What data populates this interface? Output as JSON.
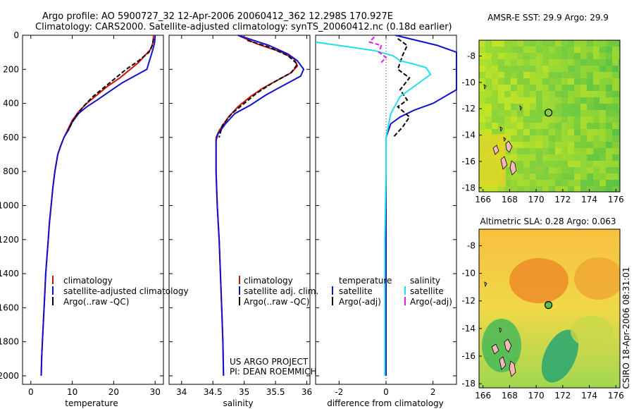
{
  "header": {
    "line1": "Argo profile: AO 5900727_32 12-Apr-2006 20060412_362 12.298S 170.927E",
    "line2": "Climatology: CARS2000. Satellite-adjusted climatology: synTS_20060412.nc (0.18d earlier)"
  },
  "side_label": "CSIRO 18-Apr-2006 08:31:01",
  "project": {
    "line1": "US ARGO PROJECT",
    "line2": "PI: DEAN ROEMMICH"
  },
  "colors": {
    "climatology": "#d01010",
    "satellite": "#1010d0",
    "argo": "#000000",
    "cyan": "#20e0e8",
    "magenta": "#e020e0"
  },
  "chart_data": [
    {
      "type": "line",
      "xlabel": "temperature",
      "ylabel": "",
      "xlim": [
        -2,
        32
      ],
      "ylim": [
        2050,
        0
      ],
      "xticks": [
        0,
        10,
        20,
        30
      ],
      "yticks": [
        0,
        200,
        400,
        600,
        800,
        1000,
        1200,
        1400,
        1600,
        1800,
        2000
      ],
      "legend": [
        "climatology",
        "satellite-adjusted climatology",
        "Argo(..raw -QC)"
      ],
      "series": [
        {
          "name": "climatology",
          "color": "#d01010",
          "dash": "",
          "points": [
            [
              29.6,
              0
            ],
            [
              29.5,
              40
            ],
            [
              29.0,
              80
            ],
            [
              27.5,
              120
            ],
            [
              26.0,
              160
            ],
            [
              24.0,
              200
            ],
            [
              21.5,
              250
            ],
            [
              18.5,
              300
            ],
            [
              16.0,
              350
            ],
            [
              13.5,
              400
            ],
            [
              11.5,
              450
            ],
            [
              10.0,
              500
            ],
            [
              9.0,
              550
            ],
            [
              8.0,
              600
            ],
            [
              7.2,
              650
            ],
            [
              6.5,
              700
            ],
            [
              5.8,
              800
            ],
            [
              5.3,
              900
            ],
            [
              4.9,
              1000
            ],
            [
              4.5,
              1100
            ],
            [
              4.2,
              1200
            ],
            [
              3.9,
              1300
            ],
            [
              3.6,
              1400
            ],
            [
              3.4,
              1500
            ],
            [
              3.2,
              1600
            ],
            [
              3.0,
              1700
            ],
            [
              2.8,
              1800
            ],
            [
              2.6,
              1900
            ],
            [
              2.5,
              2000
            ]
          ]
        },
        {
          "name": "satellite-adjusted climatology",
          "color": "#1010d0",
          "dash": "",
          "points": [
            [
              30.0,
              0
            ],
            [
              29.9,
              40
            ],
            [
              29.5,
              80
            ],
            [
              29.0,
              120
            ],
            [
              28.5,
              160
            ],
            [
              28.0,
              200
            ],
            [
              26.5,
              220
            ],
            [
              22.0,
              280
            ],
            [
              19.0,
              330
            ],
            [
              16.0,
              380
            ],
            [
              13.5,
              420
            ],
            [
              11.5,
              460
            ],
            [
              10.0,
              510
            ],
            [
              9.0,
              560
            ],
            [
              8.0,
              600
            ],
            [
              7.2,
              650
            ],
            [
              6.5,
              700
            ],
            [
              5.8,
              800
            ],
            [
              5.3,
              900
            ],
            [
              4.9,
              1000
            ],
            [
              4.5,
              1100
            ],
            [
              4.2,
              1200
            ],
            [
              3.9,
              1300
            ],
            [
              3.6,
              1400
            ],
            [
              3.4,
              1500
            ],
            [
              3.2,
              1600
            ],
            [
              3.0,
              1700
            ],
            [
              2.8,
              1800
            ],
            [
              2.6,
              1900
            ],
            [
              2.5,
              2000
            ]
          ]
        },
        {
          "name": "Argo(..raw -QC)",
          "color": "#000000",
          "dash": "6,3",
          "points": [
            [
              29.6,
              20
            ],
            [
              29.3,
              60
            ],
            [
              28.5,
              100
            ],
            [
              26.0,
              150
            ],
            [
              23.0,
              200
            ],
            [
              20.0,
              260
            ],
            [
              17.5,
              310
            ],
            [
              15.0,
              360
            ],
            [
              13.0,
              410
            ],
            [
              11.3,
              460
            ],
            [
              10.0,
              510
            ],
            [
              9.0,
              560
            ]
          ]
        }
      ]
    },
    {
      "type": "line",
      "xlabel": "salinity",
      "ylabel": "",
      "xlim": [
        33.8,
        36.05
      ],
      "ylim": [
        2050,
        0
      ],
      "xticks": [
        34,
        34.5,
        35,
        35.5,
        36
      ],
      "legend": [
        "climatology",
        "satellite adj. clim.",
        "Argo(..raw -QC)"
      ],
      "series": [
        {
          "name": "climatology",
          "color": "#d01010",
          "dash": "",
          "points": [
            [
              34.9,
              0
            ],
            [
              35.2,
              50
            ],
            [
              35.6,
              100
            ],
            [
              35.8,
              140
            ],
            [
              35.85,
              180
            ],
            [
              35.75,
              220
            ],
            [
              35.5,
              270
            ],
            [
              35.3,
              310
            ],
            [
              35.1,
              360
            ],
            [
              34.9,
              420
            ],
            [
              34.75,
              480
            ],
            [
              34.6,
              560
            ],
            [
              34.55,
              600
            ],
            [
              34.55,
              700
            ],
            [
              34.55,
              800
            ],
            [
              34.57,
              1000
            ],
            [
              34.6,
              1200
            ],
            [
              34.62,
              1400
            ],
            [
              34.64,
              1600
            ],
            [
              34.66,
              1800
            ],
            [
              34.67,
              2000
            ]
          ]
        },
        {
          "name": "satellite adj. clim.",
          "color": "#1010d0",
          "dash": "",
          "points": [
            [
              34.9,
              0
            ],
            [
              35.4,
              60
            ],
            [
              35.7,
              110
            ],
            [
              35.85,
              150
            ],
            [
              35.95,
              200
            ],
            [
              35.9,
              240
            ],
            [
              35.6,
              300
            ],
            [
              35.35,
              350
            ],
            [
              35.1,
              410
            ],
            [
              34.85,
              460
            ],
            [
              34.7,
              520
            ],
            [
              34.58,
              580
            ],
            [
              34.55,
              620
            ],
            [
              34.55,
              700
            ],
            [
              34.55,
              800
            ],
            [
              34.57,
              1000
            ],
            [
              34.6,
              1200
            ],
            [
              34.62,
              1400
            ],
            [
              34.64,
              1600
            ],
            [
              34.66,
              1800
            ],
            [
              34.67,
              2000
            ]
          ]
        },
        {
          "name": "Argo(..raw -QC)",
          "color": "#000000",
          "dash": "6,3",
          "points": [
            [
              35.05,
              30
            ],
            [
              35.4,
              70
            ],
            [
              35.7,
              120
            ],
            [
              35.85,
              170
            ],
            [
              35.75,
              220
            ],
            [
              35.45,
              280
            ],
            [
              35.2,
              340
            ],
            [
              35.0,
              400
            ],
            [
              34.8,
              460
            ],
            [
              34.65,
              530
            ],
            [
              34.6,
              600
            ]
          ]
        }
      ]
    },
    {
      "type": "line",
      "xlabel": "difference from climatology",
      "ylabel": "",
      "xlim": [
        -3,
        3
      ],
      "ylim": [
        2050,
        0
      ],
      "xticks": [
        -2,
        0,
        2
      ],
      "legend_groups": [
        {
          "title": "temperature",
          "items": [
            "satellite",
            "Argo(-adj)"
          ]
        },
        {
          "title": "salinity",
          "items": [
            "satellite",
            "Argo(-adj)"
          ]
        }
      ],
      "series": [
        {
          "name": "satellite",
          "group": "temperature",
          "color": "#1010d0",
          "dash": "",
          "points": [
            [
              0.4,
              0
            ],
            [
              2.2,
              60
            ],
            [
              3.0,
              100
            ],
            [
              3.0,
              200
            ],
            [
              3.0,
              320
            ],
            [
              2.0,
              400
            ],
            [
              1.2,
              440
            ],
            [
              0.6,
              480
            ],
            [
              0.2,
              520
            ],
            [
              0.0,
              600
            ],
            [
              0.0,
              800
            ],
            [
              0.0,
              1000
            ],
            [
              0.0,
              2000
            ]
          ]
        },
        {
          "name": "Argo(-adj)",
          "group": "temperature",
          "color": "#000000",
          "dash": "6,3",
          "points": [
            [
              0.5,
              20
            ],
            [
              0.9,
              60
            ],
            [
              0.7,
              120
            ],
            [
              0.5,
              200
            ],
            [
              1.0,
              250
            ],
            [
              0.6,
              320
            ],
            [
              0.9,
              380
            ],
            [
              0.5,
              420
            ],
            [
              1.0,
              480
            ],
            [
              0.7,
              540
            ],
            [
              0.3,
              600
            ]
          ]
        },
        {
          "name": "satellite",
          "group": "salinity",
          "color": "#20e0e8",
          "dash": "",
          "points": [
            [
              -3,
              40
            ],
            [
              -1.5,
              70
            ],
            [
              -0.5,
              90
            ],
            [
              0.3,
              120
            ],
            [
              0.6,
              150
            ],
            [
              1.2,
              170
            ],
            [
              1.7,
              190
            ],
            [
              1.9,
              230
            ],
            [
              1.3,
              290
            ],
            [
              0.6,
              360
            ],
            [
              0.2,
              460
            ],
            [
              0.0,
              600
            ],
            [
              0.0,
              800
            ],
            [
              -0.05,
              1200
            ],
            [
              -0.05,
              2000
            ]
          ]
        },
        {
          "name": "Argo(-adj)",
          "group": "salinity",
          "color": "#e020e0",
          "dash": "6,3",
          "points": [
            [
              -0.5,
              10
            ],
            [
              -0.7,
              40
            ],
            [
              -0.2,
              60
            ],
            [
              -0.3,
              100
            ],
            [
              0.0,
              130
            ],
            [
              -0.2,
              160
            ]
          ]
        }
      ]
    },
    {
      "type": "heatmap",
      "title": "AMSR-E SST: 29.9 Argo: 29.9",
      "xlim": [
        165.7,
        176.3
      ],
      "ylim": [
        -18.3,
        -6.8
      ],
      "xticks": [
        166,
        168,
        170,
        172,
        174,
        176
      ],
      "yticks": [
        -8,
        -10,
        -12,
        -14,
        -16,
        -18
      ],
      "argo_position": [
        170.927,
        -12.298
      ]
    },
    {
      "type": "heatmap",
      "title": "Altimetric SLA: 0.28 Argo: 0.063",
      "xlim": [
        165.7,
        176.3
      ],
      "ylim": [
        -18.3,
        -6.8
      ],
      "xticks": [
        166,
        168,
        170,
        172,
        174,
        176
      ],
      "yticks": [
        -8,
        -10,
        -12,
        -14,
        -16,
        -18
      ],
      "argo_position": [
        170.927,
        -12.298
      ]
    }
  ]
}
